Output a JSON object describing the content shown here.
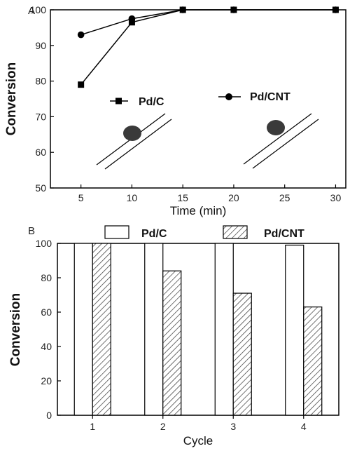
{
  "chart_data": [
    {
      "panel": "A",
      "type": "line",
      "xlabel": "Time (min)",
      "ylabel": "Conversion",
      "x": [
        5,
        10,
        15,
        20,
        30
      ],
      "xlim": [
        2,
        31
      ],
      "ylim": [
        50,
        100
      ],
      "xticks": [
        "5",
        "10",
        "15",
        "20",
        "25",
        "30"
      ],
      "yticks": [
        "50",
        "60",
        "70",
        "80",
        "90",
        "100"
      ],
      "series": [
        {
          "name": "Pd/C",
          "marker": "square",
          "values": [
            79,
            96.5,
            100,
            100,
            100
          ]
        },
        {
          "name": "Pd/CNT",
          "marker": "circle",
          "values": [
            93,
            97.5,
            100,
            100,
            100
          ]
        }
      ],
      "legend_placement": "inside-middle",
      "grid": false
    },
    {
      "panel": "B",
      "type": "bar",
      "xlabel": "Cycle",
      "ylabel": "Conversion",
      "categories": [
        "1",
        "2",
        "3",
        "4"
      ],
      "ylim": [
        0,
        100
      ],
      "yticks": [
        "0",
        "20",
        "40",
        "60",
        "80",
        "100"
      ],
      "series": [
        {
          "name": "Pd/C",
          "pattern": "white",
          "values": [
            100,
            100,
            100,
            99
          ]
        },
        {
          "name": "Pd/CNT",
          "pattern": "hatched",
          "values": [
            100,
            84,
            71,
            63
          ]
        }
      ],
      "legend_placement": "top",
      "grid": false
    }
  ]
}
